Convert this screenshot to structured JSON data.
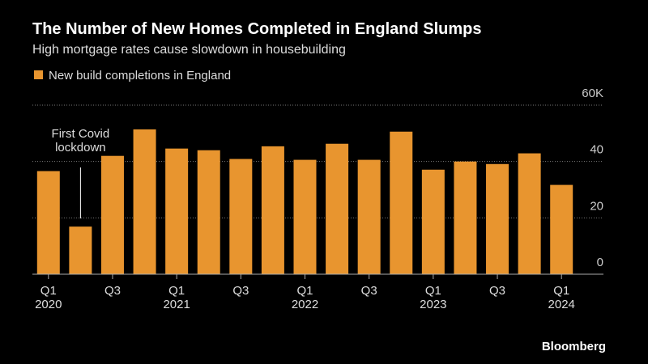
{
  "chart_data": {
    "type": "bar",
    "title": "The Number of New Homes Completed in England Slumps",
    "subtitle": "High mortgage rates cause slowdown in housebuilding",
    "annotation": "First Covid lockdown",
    "source": "Bloomberg",
    "categories": [
      "Q1 2020",
      null,
      "Q3",
      null,
      "Q1 2021",
      null,
      "Q3",
      null,
      "Q1 2022",
      null,
      "Q3",
      null,
      "Q1 2023",
      null,
      "Q3",
      null,
      "Q1 2024"
    ],
    "series": [
      {
        "name": "New build completions in England",
        "color": "#e8952f",
        "values": [
          36.6,
          16.9,
          42,
          51.4,
          44.6,
          44,
          40.9,
          45.4,
          40.6,
          46.3,
          40.6,
          50.6,
          37.1,
          40,
          39.1,
          42.9,
          31.7
        ]
      }
    ],
    "ylim": [
      0,
      60
    ],
    "yticks": [
      0,
      20,
      40,
      {
        "value": 60,
        "label": "60K"
      }
    ],
    "grid": true
  }
}
